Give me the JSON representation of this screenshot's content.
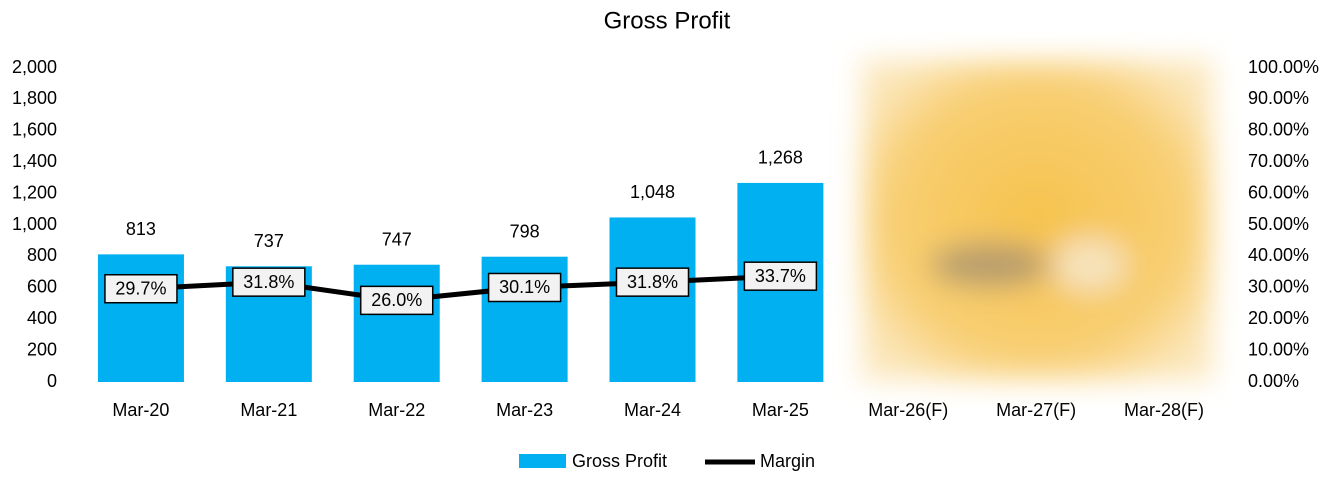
{
  "chart_data": {
    "type": "bar-line",
    "title": "Gross Profit",
    "categories": [
      "Mar-20",
      "Mar-21",
      "Mar-22",
      "Mar-23",
      "Mar-24",
      "Mar-25",
      "Mar-26(F)",
      "Mar-27(F)",
      "Mar-28(F)"
    ],
    "series": [
      {
        "name": "Gross Profit",
        "color": "#00b0f0",
        "type": "bar",
        "values": [
          813,
          737,
          747,
          798,
          1048,
          1268,
          null,
          null,
          null
        ],
        "value_labels": [
          "813",
          "737",
          "747",
          "798",
          "1,048",
          "1,268",
          null,
          null,
          null
        ]
      },
      {
        "name": "Margin",
        "color": "#000000",
        "type": "line",
        "axis": "y2",
        "values": [
          29.7,
          31.8,
          26.0,
          30.1,
          31.8,
          33.7,
          null,
          null,
          null
        ],
        "value_labels": [
          "29.7%",
          "31.8%",
          "26.0%",
          "30.1%",
          "31.8%",
          "33.7%",
          null,
          null,
          null
        ]
      }
    ],
    "ylim": [
      0,
      2000
    ],
    "yticks": [
      0,
      200,
      400,
      600,
      800,
      {
        "value": 1000,
        "label": "1,000"
      },
      {
        "value": 1200,
        "label": "1,200"
      },
      {
        "value": 1400,
        "label": "1,400"
      },
      {
        "value": 1600,
        "label": "1,600"
      },
      {
        "value": 1800,
        "label": "1,800"
      },
      {
        "value": 2000,
        "label": "2,000"
      }
    ],
    "y2lim": [
      0,
      100
    ],
    "y2ticks": [
      {
        "value": 0,
        "label": "0.00%"
      },
      {
        "value": 10,
        "label": "10.00%"
      },
      {
        "value": 20,
        "label": "20.00%"
      },
      {
        "value": 30,
        "label": "30.00%"
      },
      {
        "value": 40,
        "label": "40.00%"
      },
      {
        "value": 50,
        "label": "50.00%"
      },
      {
        "value": 60,
        "label": "60.00%"
      },
      {
        "value": 70,
        "label": "70.00%"
      },
      {
        "value": 80,
        "label": "80.00%"
      },
      {
        "value": 90,
        "label": "90.00%"
      },
      {
        "value": 100,
        "label": "100.00%"
      }
    ],
    "grid": false,
    "legend": "bottom"
  }
}
